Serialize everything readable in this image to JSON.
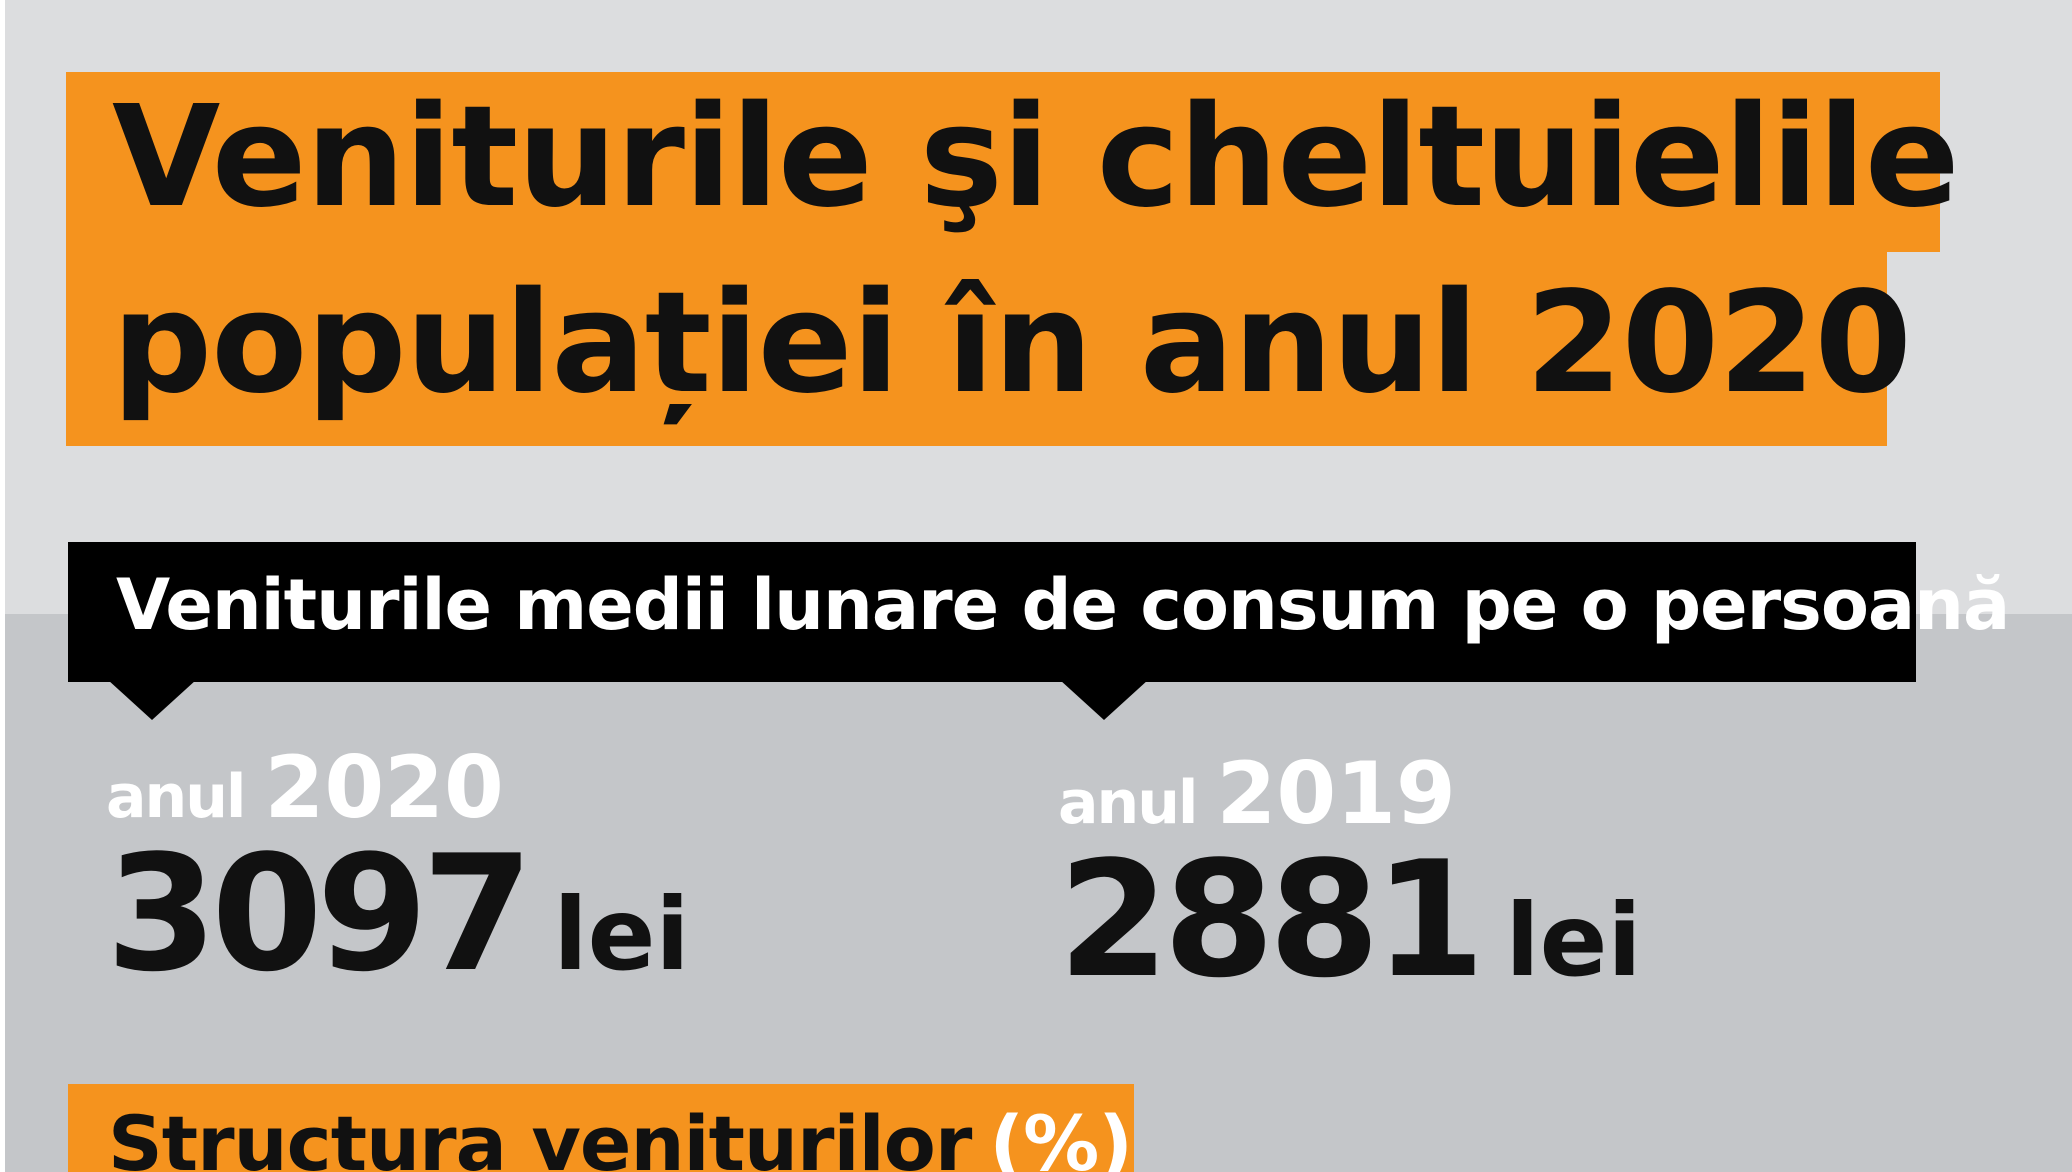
{
  "title": {
    "line1": "Veniturile şi cheltuielile",
    "line2": "populației în anul 2020"
  },
  "banner": {
    "text": "Veniturile medii lunare de consum pe o persoană"
  },
  "stats": [
    {
      "prefix": "anul",
      "year": "2020",
      "amount": "3097",
      "unit": "lei"
    },
    {
      "prefix": "anul",
      "year": "2019",
      "amount": "2881",
      "unit": "lei"
    }
  ],
  "section": {
    "title": "Structura veniturilor",
    "suffix": "(%)"
  },
  "colors": {
    "accent": "#f5931e",
    "background_top": "#dcdddf",
    "background_bottom": "#c4c6c9",
    "banner": "#000000",
    "text_dark": "#111111",
    "text_light": "#ffffff"
  }
}
